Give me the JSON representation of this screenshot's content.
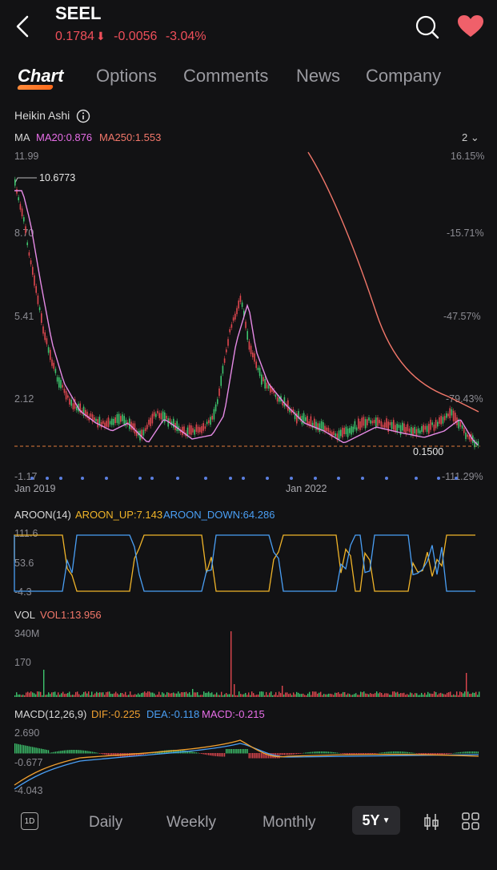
{
  "header": {
    "ticker": "SEEL",
    "price": "0.1784",
    "change": "-0.0056",
    "change_pct": "-3.04%",
    "down_color": "#ef4f5a"
  },
  "tabs": [
    {
      "label": "Chart",
      "active": true
    },
    {
      "label": "Options",
      "active": false
    },
    {
      "label": "Comments",
      "active": false
    },
    {
      "label": "News",
      "active": false
    },
    {
      "label": "Company",
      "active": false
    }
  ],
  "chart": {
    "type_label": "Heikin Ashi",
    "ma_label": "MA",
    "ma20_label": "MA20:0.876",
    "ma250_label": "MA250:1.553",
    "period_toggle": "2",
    "y_left": [
      "11.99",
      "8.70",
      "5.41",
      "2.12",
      "-1.17"
    ],
    "y_right": [
      "16.15%",
      "-15.71%",
      "-47.57%",
      "-79.43%",
      "-111.29%"
    ],
    "high_label": "10.6773",
    "low_label": "0.1500",
    "x_labels": [
      "Jan 2019",
      "Jan 2022"
    ]
  },
  "aroon": {
    "label": "AROON(14)",
    "up_label": "AROON_UP:7.143",
    "down_label": "AROON_DOWN:64.286",
    "y_labels": [
      "111.6",
      "53.6",
      "-4.3"
    ],
    "up_color": "#f0b429",
    "down_color": "#4a9ff5"
  },
  "vol": {
    "label": "VOL",
    "vol1_label": "VOL1:13.956",
    "y_labels": [
      "340M",
      "170"
    ]
  },
  "macd": {
    "label": "MACD(12,26,9)",
    "dif_label": "DIF:-0.225",
    "dea_label": "DEA:-0.118",
    "macd_label": "MACD:-0.215",
    "y_labels": [
      "2.690",
      "-0.677",
      "-4.043"
    ]
  },
  "bottom": {
    "interval_icon": "1D",
    "daily": "Daily",
    "weekly": "Weekly",
    "monthly": "Monthly",
    "range": "5Y"
  },
  "icons": {
    "back": "back-arrow-icon",
    "search": "search-icon",
    "favorite": "heart-icon",
    "info": "info-icon",
    "indicator": "candlestick-settings-icon",
    "grid": "grid-icon"
  }
}
